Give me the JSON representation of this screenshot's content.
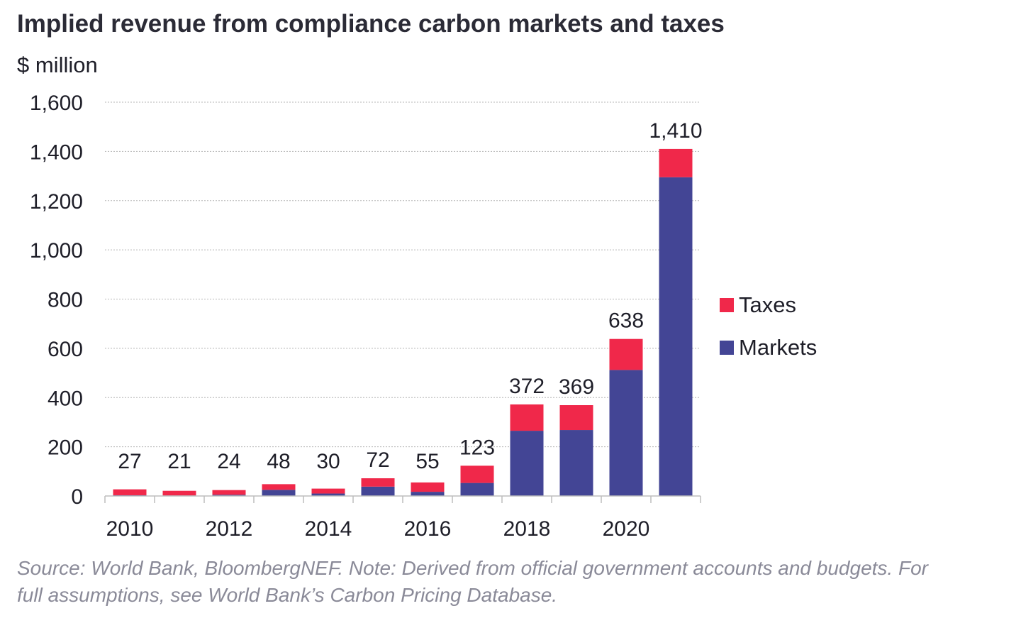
{
  "title": "Implied revenue from compliance carbon markets and taxes",
  "unit_label": "$ million",
  "source_note": "Source: World Bank, BloombergNEF. Note: Derived from official government accounts and budgets. For full assumptions, see World Bank’s Carbon Pricing Database.",
  "colors": {
    "markets": "#434595",
    "taxes": "#f0284a",
    "grid": "#b5b5b5",
    "axis": "#bdbdbd"
  },
  "chart_data": {
    "type": "bar",
    "stacked": true,
    "categories": [
      "2010",
      "2011",
      "2012",
      "2013",
      "2014",
      "2015",
      "2016",
      "2017",
      "2018",
      "2019",
      "2020",
      "2021"
    ],
    "x_tick_labels": [
      "2010",
      "",
      "2012",
      "",
      "2014",
      "",
      "2016",
      "",
      "2018",
      "",
      "2020",
      ""
    ],
    "series": [
      {
        "name": "Markets",
        "values": [
          3,
          2,
          5,
          25,
          10,
          38,
          17,
          53,
          265,
          268,
          512,
          1295
        ]
      },
      {
        "name": "Taxes",
        "values": [
          24,
          19,
          19,
          23,
          20,
          34,
          38,
          70,
          107,
          101,
          126,
          115
        ]
      }
    ],
    "totals": [
      27,
      21,
      24,
      48,
      30,
      72,
      55,
      123,
      372,
      369,
      638,
      1410
    ],
    "total_labels": [
      "27",
      "21",
      "24",
      "48",
      "30",
      "72",
      "55",
      "123",
      "372",
      "369",
      "638",
      "1,410"
    ],
    "ylim": [
      0,
      1600
    ],
    "y_ticks": [
      0,
      200,
      400,
      600,
      800,
      1000,
      1200,
      1400,
      1600
    ],
    "y_tick_labels": [
      "0",
      "200",
      "400",
      "600",
      "800",
      "1,000",
      "1,200",
      "1,400",
      "1,600"
    ],
    "legend": [
      "Taxes",
      "Markets"
    ],
    "legend_position": "right",
    "grid": true
  }
}
